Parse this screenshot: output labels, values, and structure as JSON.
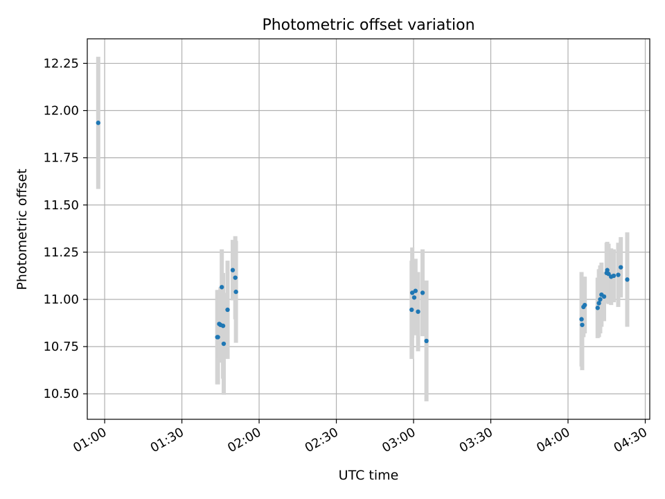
{
  "chart_data": {
    "type": "scatter",
    "title": "Photometric offset variation",
    "xlabel": "UTC time",
    "ylabel": "Photometric offset",
    "x_axis_type": "time",
    "xlim": [
      "00:53:15",
      "04:31:45"
    ],
    "ylim": [
      10.365,
      12.38
    ],
    "x_ticks": [
      "01:00",
      "01:30",
      "02:00",
      "02:30",
      "03:00",
      "03:30",
      "04:00",
      "04:30"
    ],
    "y_ticks": [
      "10.50",
      "10.75",
      "11.00",
      "11.25",
      "11.50",
      "11.75",
      "12.00",
      "12.25"
    ],
    "grid": true,
    "marker_color": "#1f77b4",
    "errorbar_color": "#d3d3d3",
    "points": [
      {
        "x": "00:57:30",
        "y": 11.935,
        "err": 0.35
      },
      {
        "x": "01:43:45",
        "y": 10.8,
        "err": 0.25
      },
      {
        "x": "01:44:00",
        "y": 10.8,
        "err": 0.25
      },
      {
        "x": "01:44:30",
        "y": 10.87,
        "err": 0.18
      },
      {
        "x": "01:45:00",
        "y": 10.865,
        "err": 0.2
      },
      {
        "x": "01:45:30",
        "y": 11.065,
        "err": 0.2
      },
      {
        "x": "01:46:00",
        "y": 10.86,
        "err": 0.28
      },
      {
        "x": "01:46:15",
        "y": 10.765,
        "err": 0.27
      },
      {
        "x": "01:47:45",
        "y": 10.945,
        "err": 0.26
      },
      {
        "x": "01:49:45",
        "y": 11.155,
        "err": 0.16
      },
      {
        "x": "01:50:45",
        "y": 11.115,
        "err": 0.22
      },
      {
        "x": "01:51:00",
        "y": 11.04,
        "err": 0.27
      },
      {
        "x": "02:59:15",
        "y": 10.945,
        "err": 0.26
      },
      {
        "x": "02:59:30",
        "y": 11.035,
        "err": 0.24
      },
      {
        "x": "03:00:15",
        "y": 11.01,
        "err": 0.2
      },
      {
        "x": "03:00:45",
        "y": 11.045,
        "err": 0.17
      },
      {
        "x": "03:01:45",
        "y": 10.935,
        "err": 0.21
      },
      {
        "x": "03:03:30",
        "y": 11.035,
        "err": 0.23
      },
      {
        "x": "03:05:00",
        "y": 10.78,
        "err": 0.32
      },
      {
        "x": "04:05:15",
        "y": 10.895,
        "err": 0.25
      },
      {
        "x": "04:05:30",
        "y": 10.865,
        "err": 0.24
      },
      {
        "x": "04:06:00",
        "y": 10.96,
        "err": 0.16
      },
      {
        "x": "04:06:30",
        "y": 10.97,
        "err": 0.15
      },
      {
        "x": "04:11:30",
        "y": 10.955,
        "err": 0.16
      },
      {
        "x": "04:12:00",
        "y": 10.98,
        "err": 0.18
      },
      {
        "x": "04:12:30",
        "y": 11.0,
        "err": 0.18
      },
      {
        "x": "04:13:00",
        "y": 11.025,
        "err": 0.17
      },
      {
        "x": "04:14:00",
        "y": 11.015,
        "err": 0.13
      },
      {
        "x": "04:15:00",
        "y": 11.14,
        "err": 0.16
      },
      {
        "x": "04:15:15",
        "y": 11.155,
        "err": 0.15
      },
      {
        "x": "04:15:45",
        "y": 11.135,
        "err": 0.16
      },
      {
        "x": "04:16:45",
        "y": 11.12,
        "err": 0.15
      },
      {
        "x": "04:17:45",
        "y": 11.125,
        "err": 0.14
      },
      {
        "x": "04:19:30",
        "y": 11.13,
        "err": 0.17
      },
      {
        "x": "04:20:30",
        "y": 11.17,
        "err": 0.16
      },
      {
        "x": "04:23:00",
        "y": 11.105,
        "err": 0.25
      }
    ]
  }
}
